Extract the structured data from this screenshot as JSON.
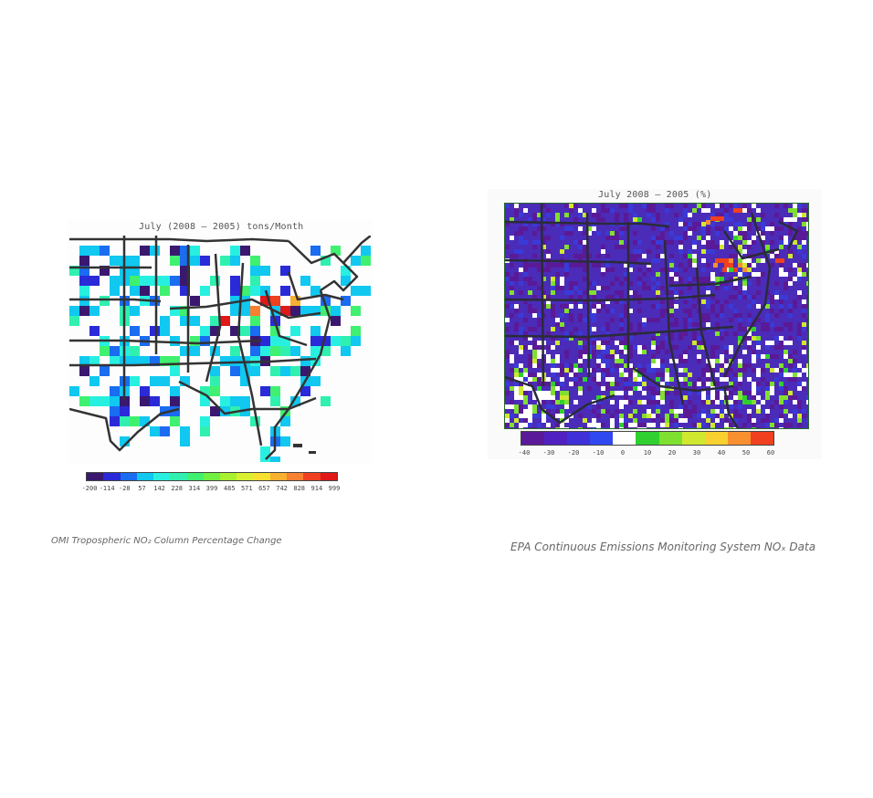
{
  "left_figure": {
    "title": "July (2008 – 2005) tons/Month",
    "colorbar_ticks": [
      "-200",
      "-114",
      "-28",
      "57",
      "142",
      "228",
      "314",
      "399",
      "485",
      "571",
      "657",
      "742",
      "828",
      "914",
      "999"
    ],
    "colorbar_colors": [
      "#3a1870",
      "#2a2ad8",
      "#1a6cf0",
      "#10c8f0",
      "#28f0e0",
      "#30f0b0",
      "#40f070",
      "#70f040",
      "#a8f030",
      "#d8f030",
      "#f8e030",
      "#f8b030",
      "#f88030",
      "#f04020",
      "#e01818"
    ],
    "caption": "OMI Tropospheric NO₂ Column Percentage Change"
  },
  "right_figure": {
    "title": "July 2008 – 2005 (%)",
    "colorbar_ticks": [
      "-40",
      "-30",
      "-20",
      "-10",
      "0",
      "10",
      "20",
      "30",
      "40",
      "50",
      "60"
    ],
    "colorbar_colors": [
      "#5a1a98",
      "#5020c0",
      "#4030d8",
      "#3048f0",
      "#ffffff",
      "#30d030",
      "#80e030",
      "#d0e830",
      "#f8d030",
      "#f89030",
      "#f04020"
    ],
    "caption": "EPA Continuous Emissions Monitoring System NOₓ Data"
  }
}
